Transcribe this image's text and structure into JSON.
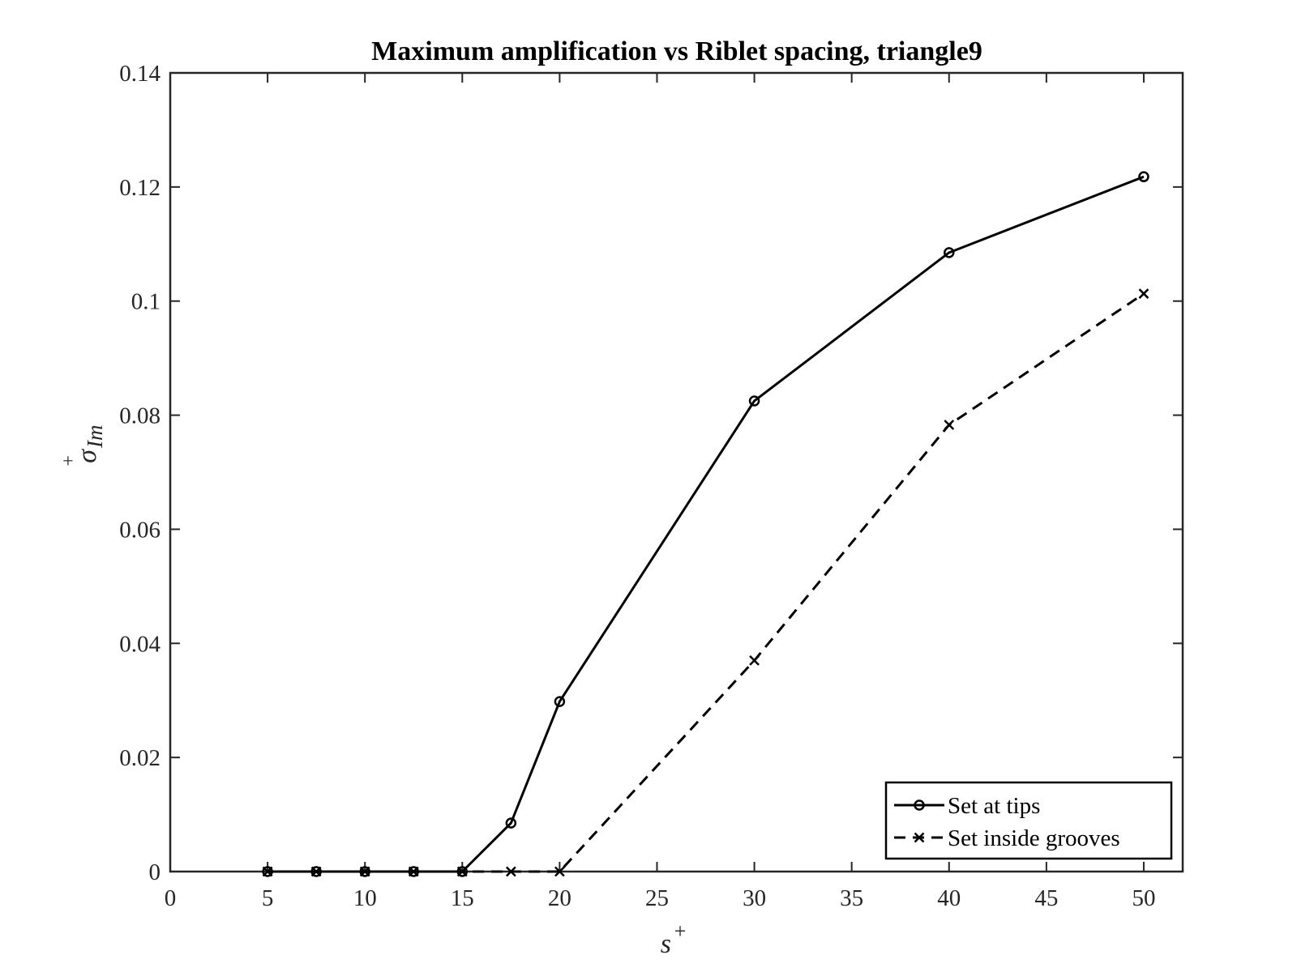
{
  "chart_data": {
    "type": "line",
    "title": "Maximum amplification vs Riblet spacing, triangle9",
    "xlabel": {
      "base": "s",
      "sup": "+"
    },
    "ylabel": {
      "base": "σ",
      "sup": "+",
      "sub": "Im"
    },
    "xlim": [
      0,
      52
    ],
    "ylim": [
      0,
      0.14
    ],
    "xticks": [
      0,
      5,
      10,
      15,
      20,
      25,
      30,
      35,
      40,
      45,
      50
    ],
    "xtick_labels": [
      "0",
      "5",
      "10",
      "15",
      "20",
      "25",
      "30",
      "35",
      "40",
      "45",
      "50"
    ],
    "yticks": [
      0,
      0.02,
      0.04,
      0.06,
      0.08,
      0.1,
      0.12,
      0.14
    ],
    "ytick_labels": [
      "0",
      "0.02",
      "0.04",
      "0.06",
      "0.08",
      "0.1",
      "0.12",
      "0.14"
    ],
    "grid": false,
    "legend_position": "bottom-right",
    "series": [
      {
        "name": "Set at tips",
        "line": "solid",
        "marker": "circle",
        "color": "#000000",
        "x": [
          5,
          7.5,
          10,
          12.5,
          15,
          17.5,
          20,
          30,
          40,
          50
        ],
        "y": [
          0,
          0,
          0,
          0,
          0,
          0.0085,
          0.0298,
          0.0825,
          0.1085,
          0.1218
        ]
      },
      {
        "name": "Set inside grooves",
        "line": "dashed",
        "marker": "x",
        "color": "#000000",
        "x": [
          5,
          7.5,
          10,
          12.5,
          15,
          17.5,
          20,
          30,
          40,
          50
        ],
        "y": [
          0,
          0,
          0,
          0,
          0,
          0,
          0,
          0.037,
          0.0783,
          0.1013
        ]
      }
    ]
  }
}
